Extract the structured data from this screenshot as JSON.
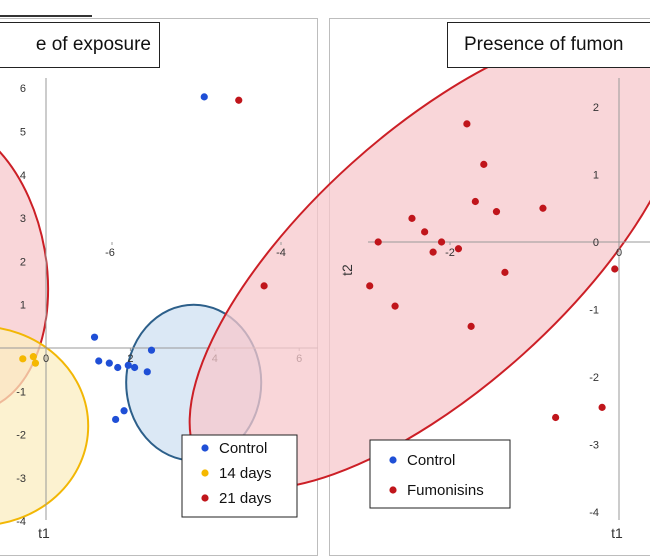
{
  "chart_data": [
    {
      "type": "scatter",
      "title": "e of exposure",
      "xlabel": "t1",
      "ylabel": "",
      "xlim": [
        -2.6,
        6
      ],
      "ylim": [
        -4,
        6.5
      ],
      "x_ticks": [
        "0",
        "2",
        "4",
        "6"
      ],
      "y_ticks": [
        "6",
        "5",
        "4",
        "3",
        "2",
        "1",
        "-1",
        "-2",
        "-3",
        "-4"
      ],
      "legend_position": "bottom-right",
      "series": [
        {
          "name": "Control",
          "color": "#1f4fd6",
          "points": [
            [
              3.75,
              5.8
            ],
            [
              1.15,
              0.25
            ],
            [
              1.25,
              -0.3
            ],
            [
              1.5,
              -0.35
            ],
            [
              1.7,
              -0.45
            ],
            [
              1.95,
              -0.4
            ],
            [
              2.1,
              -0.45
            ],
            [
              2.4,
              -0.55
            ],
            [
              2.5,
              -0.05
            ],
            [
              1.65,
              -1.65
            ],
            [
              1.85,
              -1.45
            ]
          ]
        },
        {
          "name": "14 days",
          "color": "#f5b800",
          "points": [
            [
              -0.3,
              -0.2
            ],
            [
              -0.55,
              -0.25
            ],
            [
              -0.25,
              -0.35
            ],
            [
              -1.5,
              -0.9
            ],
            [
              -1.35,
              -2.25
            ],
            [
              -1.6,
              -2.1
            ]
          ]
        },
        {
          "name": "21 days",
          "color": "#c0151b",
          "points": [
            [
              -1.6,
              3.2
            ],
            [
              -1.6,
              0.2
            ]
          ]
        }
      ],
      "ellipses": [
        {
          "color": "#cc1f26",
          "fill": "#f7c8cc",
          "cx": -2.2,
          "cy": 1.9,
          "rx": 2.2,
          "ry": 3.4,
          "angle": -10
        },
        {
          "color": "#f2b705",
          "fill": "#fbedc0",
          "cx": -1.6,
          "cy": -1.8,
          "rx": 2.6,
          "ry": 2.3,
          "angle": 0
        },
        {
          "color": "#2c5f8a",
          "fill": "#cfe0f2",
          "cx": 3.5,
          "cy": -0.8,
          "rx": 1.6,
          "ry": 1.8,
          "angle": 0
        }
      ]
    },
    {
      "type": "scatter",
      "title": "Presence of fumon",
      "xlabel": "t1",
      "ylabel": "t2",
      "xlim": [
        -6,
        0.5
      ],
      "ylim": [
        -4,
        2.5
      ],
      "x_ticks": [
        "-6",
        "-4",
        "-2",
        "0"
      ],
      "y_ticks": [
        "2",
        "1",
        "0",
        "-1",
        "-2",
        "-3",
        "-4"
      ],
      "legend_position": "bottom-left",
      "series": [
        {
          "name": "Control",
          "color": "#1f4fd6",
          "points": []
        },
        {
          "name": "Fumonisins",
          "color": "#c0151b",
          "points": [
            [
              -4.5,
              2.1
            ],
            [
              -1.8,
              1.75
            ],
            [
              -1.6,
              1.15
            ],
            [
              -1.7,
              0.6
            ],
            [
              -1.45,
              0.45
            ],
            [
              -0.9,
              0.5
            ],
            [
              -2.45,
              0.35
            ],
            [
              -2.3,
              0.15
            ],
            [
              -2.1,
              0.0
            ],
            [
              -1.9,
              -0.1
            ],
            [
              -2.2,
              -0.15
            ],
            [
              -1.35,
              -0.45
            ],
            [
              -2.85,
              0.0
            ],
            [
              -4.2,
              -0.65
            ],
            [
              -2.95,
              -0.65
            ],
            [
              -2.65,
              -0.95
            ],
            [
              -1.75,
              -1.25
            ],
            [
              -0.05,
              -0.4
            ],
            [
              -0.75,
              -2.6
            ],
            [
              -0.2,
              -2.45
            ]
          ]
        }
      ],
      "ellipses": [
        {
          "color": "#cc1f26",
          "fill": "#f7c8cc",
          "cx": -2.15,
          "cy": -0.25,
          "rx": 3.7,
          "ry": 1.9,
          "angle": -42
        }
      ]
    }
  ],
  "legend_left": {
    "items": [
      "Control",
      "14 days",
      "21 days"
    ]
  },
  "legend_right": {
    "items": [
      "Control",
      "Fumonisins"
    ]
  }
}
